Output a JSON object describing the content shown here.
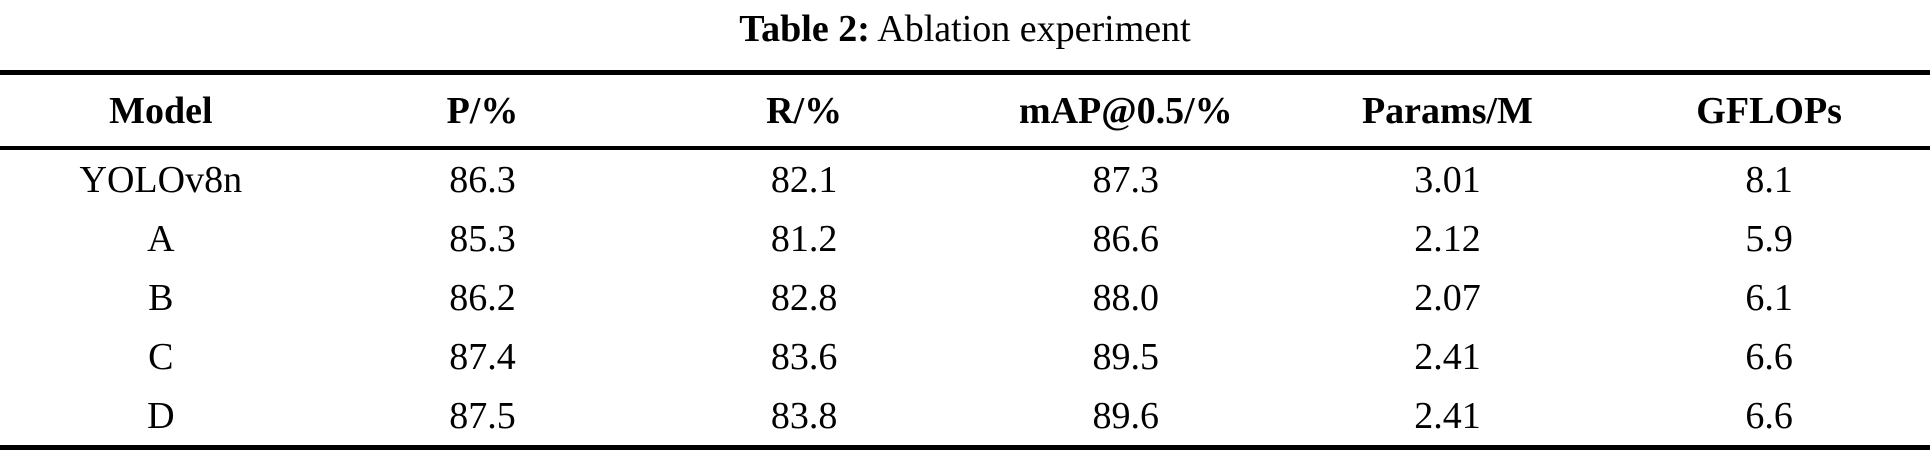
{
  "caption": {
    "label": "Table 2:",
    "text": "Ablation experiment"
  },
  "table": {
    "columns": [
      "Model",
      "P/%",
      "R/%",
      "mAP@0.5/%",
      "Params/M",
      "GFLOPs"
    ],
    "rows": [
      [
        "YOLOv8n",
        "86.3",
        "82.1",
        "87.3",
        "3.01",
        "8.1"
      ],
      [
        "A",
        "85.3",
        "81.2",
        "86.6",
        "2.12",
        "5.9"
      ],
      [
        "B",
        "86.2",
        "82.8",
        "88.0",
        "2.07",
        "6.1"
      ],
      [
        "C",
        "87.4",
        "83.6",
        "89.5",
        "2.41",
        "6.6"
      ],
      [
        "D",
        "87.5",
        "83.8",
        "89.6",
        "2.41",
        "6.6"
      ]
    ]
  },
  "colors": {
    "text": "#000000",
    "background": "#ffffff",
    "rule": "#000000"
  }
}
